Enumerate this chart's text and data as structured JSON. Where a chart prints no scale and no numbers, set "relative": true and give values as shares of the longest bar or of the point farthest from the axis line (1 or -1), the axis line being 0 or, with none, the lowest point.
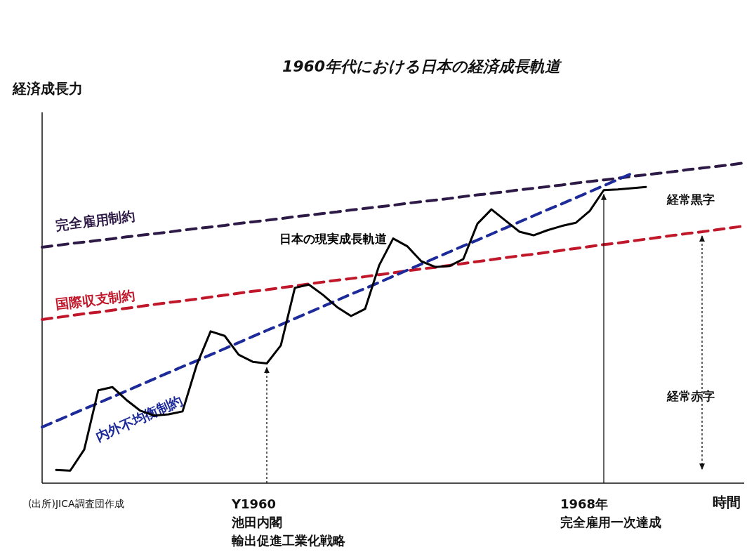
{
  "chart_data": {
    "type": "line",
    "relative": true,
    "title": "1960年代における日本の経済成長軌道",
    "ylabel": "経済成長力",
    "xlabel": "時間",
    "categories": [
      null,
      null,
      null,
      null,
      null,
      null,
      null,
      null,
      null,
      null,
      null,
      null,
      null,
      null,
      null,
      null,
      null,
      null,
      null,
      null,
      null,
      null,
      null,
      null,
      null,
      null,
      null,
      null,
      null,
      null,
      null,
      null,
      null,
      null,
      null,
      null,
      null,
      null,
      null,
      null,
      null,
      null,
      null,
      null,
      null,
      null,
      null,
      null,
      null,
      null,
      null
    ],
    "series": [
      {
        "name": "完全雇用制約",
        "color": "#2e1a47",
        "line_style": "dashed",
        "values": [
          0.737,
          0.742,
          0.748,
          0.753,
          0.758,
          0.763,
          0.769,
          0.774,
          0.779,
          0.784,
          0.79,
          0.795,
          0.8,
          0.805,
          0.811,
          0.816,
          0.821,
          0.826,
          0.832,
          0.837,
          0.842,
          0.847,
          0.853,
          0.858,
          0.863,
          0.868,
          0.874,
          0.879,
          0.884,
          0.889,
          0.895,
          0.9,
          0.905,
          0.91,
          0.916,
          0.921,
          0.926,
          0.931,
          0.937,
          0.942,
          0.947,
          0.952,
          0.958,
          0.963,
          0.968,
          0.973,
          0.979,
          0.984,
          0.989,
          0.994,
          1.0
        ]
      },
      {
        "name": "国際収支制約",
        "color": "#c0182a",
        "line_style": "dashed",
        "values": [
          0.511,
          0.517,
          0.523,
          0.529,
          0.534,
          0.54,
          0.546,
          0.552,
          0.558,
          0.564,
          0.569,
          0.575,
          0.581,
          0.587,
          0.593,
          0.599,
          0.604,
          0.61,
          0.616,
          0.622,
          0.628,
          0.634,
          0.639,
          0.645,
          0.651,
          0.657,
          0.663,
          0.669,
          0.674,
          0.68,
          0.686,
          0.692,
          0.698,
          0.704,
          0.71,
          0.715,
          0.721,
          0.727,
          0.733,
          0.739,
          0.745,
          0.75,
          0.756,
          0.762,
          0.768,
          0.774,
          0.78,
          0.785,
          0.791,
          0.797,
          0.803
        ]
      },
      {
        "name": "内外不均衡制約",
        "color": "#1c2a9a",
        "line_style": "dashed",
        "values": [
          0.175,
          0.194,
          0.213,
          0.232,
          0.25,
          0.269,
          0.288,
          0.307,
          0.326,
          0.345,
          0.364,
          0.382,
          0.401,
          0.42,
          0.439,
          0.458,
          0.477,
          0.495,
          0.514,
          0.533,
          0.552,
          0.571,
          0.59,
          0.608,
          0.627,
          0.646,
          0.665,
          0.684,
          0.703,
          0.722,
          0.741,
          0.759,
          0.778,
          0.797,
          0.816,
          0.835,
          0.854,
          0.872,
          0.891,
          0.91,
          0.929,
          0.948,
          0.967,
          null,
          null,
          null,
          null,
          null,
          null,
          null,
          null
        ]
      },
      {
        "name": "日本の現実成長軌道",
        "color": "#000000",
        "line_style": "solid",
        "values": [
          null,
          0.041,
          0.039,
          0.105,
          0.29,
          0.3,
          0.26,
          0.226,
          0.211,
          0.215,
          0.224,
          0.368,
          0.474,
          0.46,
          0.401,
          0.379,
          0.374,
          0.43,
          0.61,
          0.62,
          0.588,
          0.55,
          0.522,
          0.544,
          0.68,
          0.764,
          0.74,
          0.693,
          0.675,
          0.678,
          0.7,
          0.81,
          0.855,
          0.82,
          0.785,
          0.774,
          0.79,
          0.803,
          0.813,
          0.85,
          0.915,
          0.917,
          0.921,
          0.925,
          null,
          null,
          null,
          null,
          null,
          null,
          null
        ]
      }
    ],
    "annotations": [
      "(出所)JICA調査団作成",
      "Y1960",
      "池田内閣",
      "輸出促進工業化戦略",
      "1968年",
      "完全雇用一次達成",
      "経常黒字",
      "経常赤字"
    ]
  }
}
